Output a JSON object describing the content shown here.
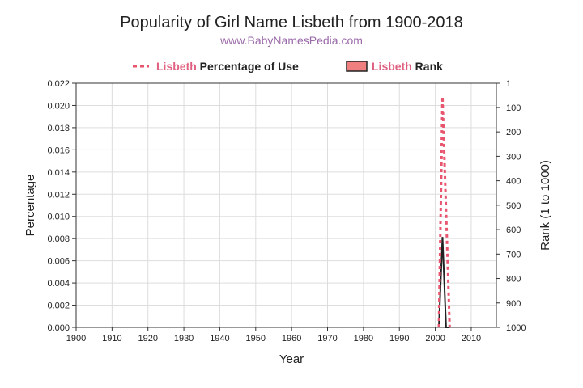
{
  "chart_data": {
    "type": "line",
    "title": "Popularity of Girl Name Lisbeth from 1900-2018",
    "subtitle": "www.BabyNamesPedia.com",
    "xlabel": "Year",
    "ylabel": "Percentage",
    "y2label": "Rank (1 to 1000)",
    "xlim": [
      1900,
      2017
    ],
    "ylim": [
      0,
      0.022
    ],
    "y2lim": [
      1,
      1000
    ],
    "xticks": [
      "1900",
      "1910",
      "1920",
      "1930",
      "1940",
      "1950",
      "1960",
      "1970",
      "1980",
      "1990",
      "2000",
      "2010"
    ],
    "yticks": [
      "0.000",
      "0.002",
      "0.004",
      "0.006",
      "0.008",
      "0.010",
      "0.012",
      "0.014",
      "0.016",
      "0.018",
      "0.020",
      "0.022"
    ],
    "y2ticks": [
      "1",
      "100",
      "200",
      "300",
      "400",
      "500",
      "600",
      "700",
      "800",
      "900",
      "1000"
    ],
    "legend": {
      "placement": "top",
      "name": "Lisbeth",
      "pct_label": "Percentage of Use",
      "rank_label": "Rank"
    },
    "grid": true,
    "colors": {
      "pct": "#e8556f",
      "rank": "#222222",
      "name": "#e06080",
      "rank_fill": "#f08080",
      "subtitle": "#9a6aa8"
    },
    "series": [
      {
        "name": "Lisbeth Percentage of Use",
        "x": [
          2001,
          2002,
          2003,
          2004
        ],
        "values": [
          0,
          0.0208,
          0.0104,
          0
        ]
      },
      {
        "name": "Lisbeth Rank",
        "x": [
          2001,
          2002,
          2003,
          2004
        ],
        "values": [
          1000,
          630,
          1000,
          1000
        ]
      }
    ]
  }
}
